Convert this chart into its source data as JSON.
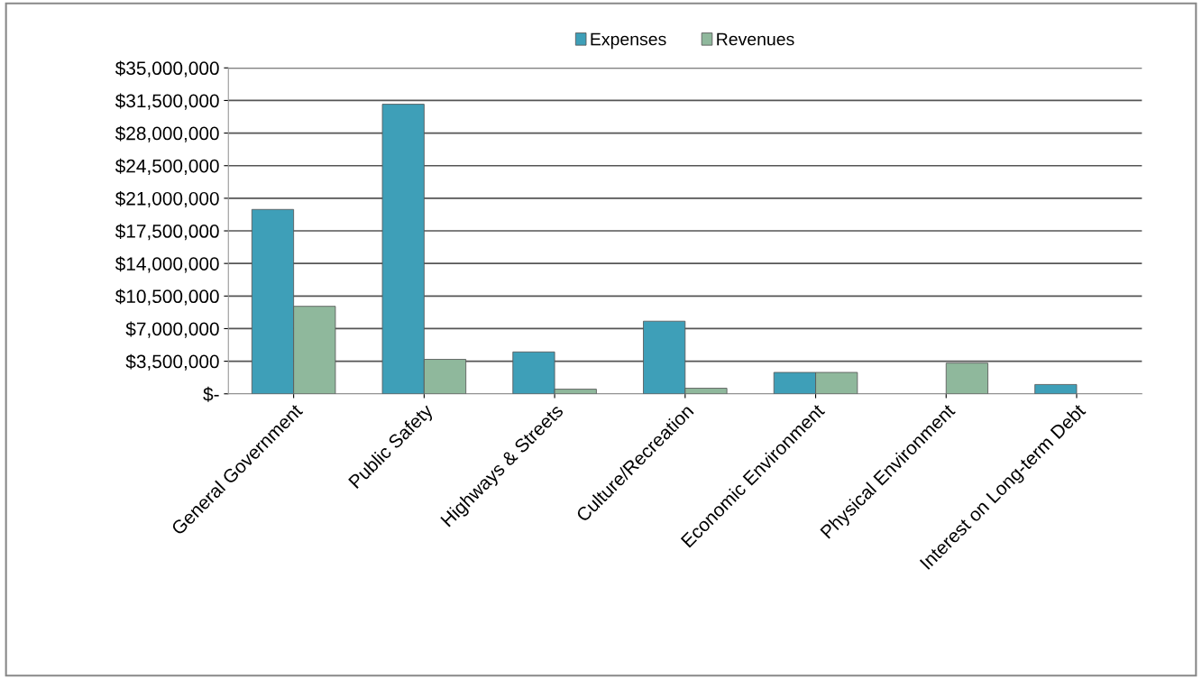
{
  "chart_data": {
    "type": "bar",
    "categories": [
      "General Government",
      "Public Safety",
      "Highways & Streets",
      "Culture/Recreation",
      "Economic Environment",
      "Physical Environment",
      "Interest on Long-term Debt"
    ],
    "series": [
      {
        "name": "Expenses",
        "color": "#3e9fb8",
        "values": [
          19800000,
          31100000,
          4500000,
          7800000,
          2300000,
          null,
          1000000
        ]
      },
      {
        "name": "Revenues",
        "color": "#8fb89c",
        "values": [
          9400000,
          3700000,
          500000,
          600000,
          2300000,
          3300000,
          null
        ]
      }
    ],
    "ylim": [
      0,
      35000000
    ],
    "yticks": [
      {
        "value": 0,
        "label": "$-"
      },
      {
        "value": 3500000,
        "label": "$3,500,000"
      },
      {
        "value": 7000000,
        "label": "$7,000,000"
      },
      {
        "value": 10500000,
        "label": "$10,500,000"
      },
      {
        "value": 14000000,
        "label": "$14,000,000"
      },
      {
        "value": 17500000,
        "label": "$17,500,000"
      },
      {
        "value": 21000000,
        "label": "$21,000,000"
      },
      {
        "value": 24500000,
        "label": "$24,500,000"
      },
      {
        "value": 28000000,
        "label": "$28,000,000"
      },
      {
        "value": 31500000,
        "label": "$31,500,000"
      },
      {
        "value": 35000000,
        "label": "$35,000,000"
      }
    ],
    "grid": "y",
    "legend": "top"
  }
}
